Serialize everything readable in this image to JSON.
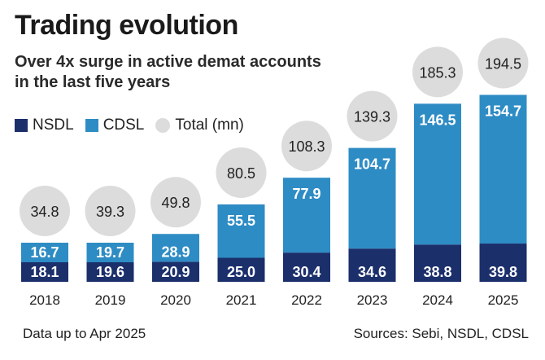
{
  "header": {
    "title": "Trading evolution",
    "subtitle_line1": "Over 4x surge in active demat accounts",
    "subtitle_line2": "in the last five years"
  },
  "legend": {
    "nsdl": "NSDL",
    "cdsl": "CDSL",
    "total": "Total (mn)"
  },
  "colors": {
    "nsdl": "#1b2f6b",
    "cdsl": "#2e8cc4",
    "total_bubble": "#dcdcdc"
  },
  "footer": {
    "note": "Data up to Apr 2025",
    "sources": "Sources: Sebi, NSDL, CDSL"
  },
  "chart_data": {
    "type": "bar",
    "stacked": true,
    "categories": [
      "2018",
      "2019",
      "2020",
      "2021",
      "2022",
      "2023",
      "2024",
      "2025"
    ],
    "series": [
      {
        "name": "NSDL",
        "values": [
          18.1,
          19.6,
          20.9,
          25.0,
          30.4,
          34.6,
          38.8,
          39.8
        ]
      },
      {
        "name": "CDSL",
        "values": [
          16.7,
          19.7,
          28.9,
          55.5,
          77.9,
          104.7,
          146.5,
          154.7
        ]
      }
    ],
    "totals": {
      "name": "Total (mn)",
      "values": [
        34.8,
        39.3,
        49.8,
        80.5,
        108.3,
        139.3,
        185.3,
        194.5
      ]
    },
    "value_labels": {
      "nsdl": [
        "18.1",
        "19.6",
        "20.9",
        "25.0",
        "30.4",
        "34.6",
        "38.8",
        "39.8"
      ],
      "cdsl": [
        "16.7",
        "19.7",
        "28.9",
        "55.5",
        "77.9",
        "104.7",
        "146.5",
        "154.7"
      ],
      "total": [
        "34.8",
        "39.3",
        "49.8",
        "80.5",
        "108.3",
        "139.3",
        "185.3",
        "194.5"
      ]
    },
    "ylim": [
      0,
      200
    ],
    "grid": false,
    "legend_position": "top-left"
  }
}
